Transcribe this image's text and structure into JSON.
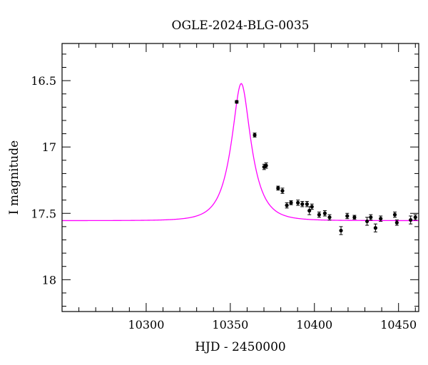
{
  "chart_data": {
    "type": "scatter",
    "title": "OGLE-2024-BLG-0035",
    "xlabel": "HJD - 2450000",
    "ylabel": "I magnitude",
    "xlim": [
      10250,
      10462
    ],
    "ylim": [
      18.24,
      16.22
    ],
    "y_inverted": true,
    "grid": false,
    "x_major_ticks": [
      10300,
      10350,
      10400,
      10450
    ],
    "x_minor_step": 10,
    "x_tick_labels": [
      "10300",
      "10350",
      "10400",
      "10450"
    ],
    "y_major_ticks": [
      16.5,
      17,
      17.5,
      18
    ],
    "y_minor_step": 0.1,
    "y_tick_labels": [
      "16.5",
      "17",
      "17.5",
      "18"
    ],
    "model_color": "#ff00ff",
    "point_color": "#000000",
    "model": {
      "name": "",
      "baseline": 17.555,
      "t0": 10356.5,
      "u0": 0.41,
      "tE": 11.0
    },
    "series": [
      {
        "name": "",
        "points": [
          {
            "x": 10353.8,
            "y": 16.66,
            "err": 0.01
          },
          {
            "x": 10364.5,
            "y": 16.91,
            "err": 0.015
          },
          {
            "x": 10370.1,
            "y": 17.15,
            "err": 0.02
          },
          {
            "x": 10371.3,
            "y": 17.14,
            "err": 0.02
          },
          {
            "x": 10378.4,
            "y": 17.31,
            "err": 0.015
          },
          {
            "x": 10381.0,
            "y": 17.33,
            "err": 0.02
          },
          {
            "x": 10383.6,
            "y": 17.44,
            "err": 0.02
          },
          {
            "x": 10386.1,
            "y": 17.42,
            "err": 0.015
          },
          {
            "x": 10390.2,
            "y": 17.42,
            "err": 0.02
          },
          {
            "x": 10392.8,
            "y": 17.43,
            "err": 0.02
          },
          {
            "x": 10395.6,
            "y": 17.43,
            "err": 0.02
          },
          {
            "x": 10397.0,
            "y": 17.48,
            "err": 0.03
          },
          {
            "x": 10398.5,
            "y": 17.45,
            "err": 0.02
          },
          {
            "x": 10402.8,
            "y": 17.51,
            "err": 0.02
          },
          {
            "x": 10406.2,
            "y": 17.5,
            "err": 0.02
          },
          {
            "x": 10409.0,
            "y": 17.53,
            "err": 0.02
          },
          {
            "x": 10415.8,
            "y": 17.63,
            "err": 0.03
          },
          {
            "x": 10419.5,
            "y": 17.52,
            "err": 0.02
          },
          {
            "x": 10423.8,
            "y": 17.53,
            "err": 0.015
          },
          {
            "x": 10431.3,
            "y": 17.56,
            "err": 0.03
          },
          {
            "x": 10433.5,
            "y": 17.53,
            "err": 0.02
          },
          {
            "x": 10436.3,
            "y": 17.61,
            "err": 0.03
          },
          {
            "x": 10439.4,
            "y": 17.54,
            "err": 0.02
          },
          {
            "x": 10447.8,
            "y": 17.51,
            "err": 0.02
          },
          {
            "x": 10449.0,
            "y": 17.57,
            "err": 0.02
          },
          {
            "x": 10457.2,
            "y": 17.55,
            "err": 0.03
          },
          {
            "x": 10460.0,
            "y": 17.53,
            "err": 0.02
          }
        ]
      }
    ]
  }
}
